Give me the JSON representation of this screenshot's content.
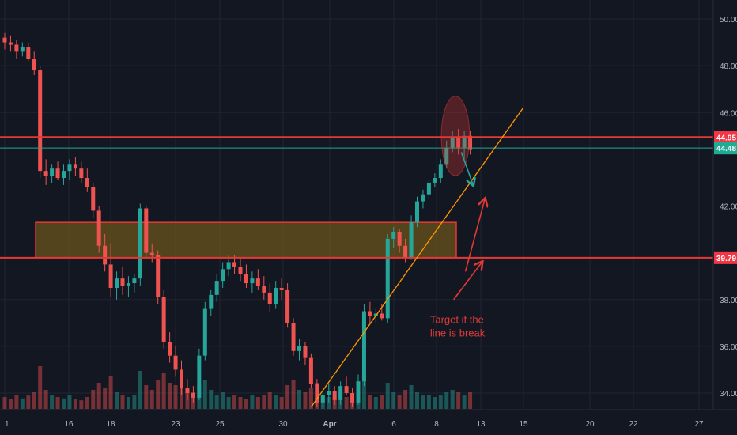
{
  "chart_data": {
    "type": "candlestick",
    "y_axis": {
      "ticks": [
        "50.00",
        "48.00",
        "46.00",
        "42.00",
        "38.00",
        "36.00",
        "34.00"
      ],
      "range": [
        33.4,
        50.9
      ]
    },
    "x_axis": {
      "ticks": [
        "1",
        "16",
        "18",
        "23",
        "25",
        "30",
        "Apr",
        "6",
        "8",
        "13",
        "15",
        "20",
        "22",
        "27"
      ]
    },
    "price_badges": [
      {
        "label": "44.95",
        "value": 44.95,
        "color": "#f23645",
        "text_color": "#ffffff"
      },
      {
        "label": "44.48",
        "value": 44.48,
        "color": "#22ab94",
        "text_color": "#ffffff"
      },
      {
        "label": "39.79",
        "value": 39.79,
        "color": "#f23645",
        "text_color": "#ffffff"
      }
    ],
    "horizontal_lines": [
      {
        "value": 44.95,
        "color": "#e53935"
      },
      {
        "value": 44.48,
        "color": "#26a69a"
      },
      {
        "value": 39.79,
        "color": "#e53935"
      }
    ],
    "zone": {
      "low": 39.79,
      "high": 41.3,
      "fill": "#8a6a1a",
      "border": "#e53935"
    },
    "candles": [
      [
        49.2,
        49.4,
        48.7,
        49.0
      ],
      [
        49.0,
        49.3,
        48.6,
        48.9
      ],
      [
        48.9,
        49.1,
        48.3,
        48.6
      ],
      [
        48.6,
        49.0,
        48.4,
        48.8
      ],
      [
        48.8,
        49.0,
        48.2,
        48.3
      ],
      [
        48.3,
        48.6,
        47.6,
        47.8
      ],
      [
        47.8,
        48.0,
        43.2,
        43.5
      ],
      [
        43.5,
        44.0,
        42.9,
        43.3
      ],
      [
        43.3,
        43.8,
        43.0,
        43.6
      ],
      [
        43.6,
        43.9,
        43.1,
        43.2
      ],
      [
        43.2,
        43.8,
        42.9,
        43.5
      ],
      [
        43.5,
        44.0,
        43.1,
        43.8
      ],
      [
        43.8,
        44.1,
        43.3,
        43.6
      ],
      [
        43.6,
        43.9,
        43.0,
        43.2
      ],
      [
        43.2,
        43.6,
        42.6,
        42.8
      ],
      [
        42.8,
        43.0,
        41.5,
        41.8
      ],
      [
        41.8,
        42.0,
        40.0,
        40.3
      ],
      [
        40.3,
        40.8,
        39.2,
        39.5
      ],
      [
        39.5,
        40.4,
        38.1,
        38.5
      ],
      [
        38.5,
        39.2,
        38.0,
        38.9
      ],
      [
        38.9,
        39.4,
        38.2,
        38.6
      ],
      [
        38.6,
        39.0,
        38.1,
        38.7
      ],
      [
        38.7,
        39.1,
        38.3,
        38.9
      ],
      [
        38.9,
        42.1,
        38.6,
        41.9
      ],
      [
        41.9,
        42.0,
        39.8,
        40.0
      ],
      [
        40.0,
        40.4,
        39.6,
        39.9
      ],
      [
        39.9,
        40.1,
        37.8,
        38.1
      ],
      [
        38.1,
        38.4,
        35.9,
        36.2
      ],
      [
        36.2,
        36.6,
        35.3,
        35.6
      ],
      [
        35.6,
        36.0,
        34.7,
        35.0
      ],
      [
        35.0,
        35.4,
        33.9,
        34.2
      ],
      [
        34.2,
        34.6,
        33.7,
        34.0
      ],
      [
        34.0,
        34.3,
        33.6,
        33.8
      ],
      [
        33.8,
        35.9,
        33.7,
        35.6
      ],
      [
        35.6,
        37.9,
        35.4,
        37.6
      ],
      [
        37.6,
        38.4,
        37.3,
        38.2
      ],
      [
        38.2,
        39.1,
        37.9,
        38.8
      ],
      [
        38.8,
        39.6,
        38.5,
        39.3
      ],
      [
        39.3,
        39.9,
        39.0,
        39.6
      ],
      [
        39.6,
        39.9,
        39.1,
        39.4
      ],
      [
        39.4,
        39.8,
        38.8,
        39.1
      ],
      [
        39.1,
        39.5,
        38.5,
        38.7
      ],
      [
        38.7,
        39.2,
        38.3,
        38.9
      ],
      [
        38.9,
        39.3,
        38.4,
        38.6
      ],
      [
        38.6,
        39.0,
        38.0,
        38.3
      ],
      [
        38.3,
        38.7,
        37.5,
        37.8
      ],
      [
        37.8,
        38.8,
        37.6,
        38.5
      ],
      [
        38.5,
        38.9,
        38.0,
        38.4
      ],
      [
        38.4,
        38.7,
        36.8,
        37.0
      ],
      [
        37.0,
        37.2,
        35.6,
        35.8
      ],
      [
        35.8,
        36.3,
        35.4,
        36.0
      ],
      [
        36.0,
        36.2,
        35.2,
        35.5
      ],
      [
        35.5,
        35.7,
        34.2,
        34.4
      ],
      [
        34.4,
        34.6,
        33.4,
        33.6
      ],
      [
        33.6,
        34.0,
        33.4,
        33.9
      ],
      [
        33.9,
        34.4,
        33.6,
        34.1
      ],
      [
        34.1,
        34.3,
        33.5,
        33.7
      ],
      [
        33.7,
        34.5,
        33.5,
        34.3
      ],
      [
        34.3,
        34.7,
        33.9,
        34.0
      ],
      [
        34.0,
        34.2,
        33.4,
        33.6
      ],
      [
        33.6,
        34.8,
        33.5,
        34.5
      ],
      [
        34.5,
        37.8,
        34.3,
        37.5
      ],
      [
        37.5,
        37.9,
        37.0,
        37.3
      ],
      [
        37.3,
        37.6,
        37.0,
        37.4
      ],
      [
        37.4,
        37.8,
        37.1,
        37.2
      ],
      [
        37.2,
        40.8,
        37.0,
        40.6
      ],
      [
        40.6,
        41.1,
        40.2,
        40.9
      ],
      [
        40.9,
        41.0,
        40.0,
        40.3
      ],
      [
        40.3,
        40.6,
        39.6,
        39.8
      ],
      [
        39.8,
        41.6,
        39.7,
        41.3
      ],
      [
        41.3,
        42.4,
        41.1,
        42.2
      ],
      [
        42.2,
        42.7,
        41.9,
        42.5
      ],
      [
        42.5,
        43.1,
        42.3,
        43.0
      ],
      [
        43.0,
        43.4,
        42.8,
        43.2
      ],
      [
        43.2,
        44.0,
        43.0,
        43.8
      ],
      [
        43.8,
        44.8,
        43.6,
        44.5
      ],
      [
        44.5,
        45.2,
        44.3,
        44.9
      ],
      [
        44.9,
        45.3,
        44.2,
        44.5
      ],
      [
        44.5,
        45.2,
        44.0,
        45.0
      ],
      [
        45.0,
        45.2,
        44.2,
        44.4
      ]
    ],
    "volumes": [
      0.25,
      0.2,
      0.3,
      0.22,
      0.28,
      0.35,
      0.9,
      0.4,
      0.3,
      0.25,
      0.22,
      0.3,
      0.2,
      0.18,
      0.25,
      0.4,
      0.55,
      0.45,
      0.7,
      0.35,
      0.3,
      0.25,
      0.3,
      0.8,
      0.5,
      0.4,
      0.6,
      0.75,
      0.55,
      0.5,
      0.45,
      0.4,
      0.35,
      0.5,
      0.6,
      0.4,
      0.3,
      0.35,
      0.25,
      0.3,
      0.25,
      0.2,
      0.3,
      0.25,
      0.3,
      0.35,
      0.3,
      0.25,
      0.5,
      0.6,
      0.4,
      0.35,
      0.45,
      0.55,
      0.3,
      0.25,
      0.3,
      0.35,
      0.25,
      0.3,
      0.35,
      0.6,
      0.3,
      0.25,
      0.3,
      0.55,
      0.35,
      0.3,
      0.4,
      0.5,
      0.35,
      0.3,
      0.3,
      0.25,
      0.3,
      0.35,
      0.4,
      0.35,
      0.3,
      0.35
    ],
    "annotations": [
      {
        "type": "trendline",
        "from": [
          52,
          33.4
        ],
        "to": [
          88,
          46.2
        ],
        "color": "#ff9800"
      },
      {
        "type": "ellipse",
        "center": [
          76.5,
          45.0
        ],
        "rx": 2.4,
        "ry": 1.7,
        "color": "#e53935"
      },
      {
        "type": "arrow",
        "from": [
          77.5,
          44.3
        ],
        "to": [
          79.5,
          42.9
        ],
        "color": "#26a69a"
      },
      {
        "type": "arrow",
        "from": [
          78.2,
          39.2
        ],
        "to": [
          81.5,
          42.3
        ],
        "color": "#e53935"
      },
      {
        "type": "arrow",
        "from": [
          76.2,
          38.0
        ],
        "to": [
          81.0,
          39.6
        ],
        "color": "#e53935"
      },
      {
        "type": "text",
        "lines": [
          "Target if the",
          "line is break"
        ],
        "at": [
          72.2,
          37.0
        ],
        "color": "#e03a3a"
      }
    ]
  }
}
